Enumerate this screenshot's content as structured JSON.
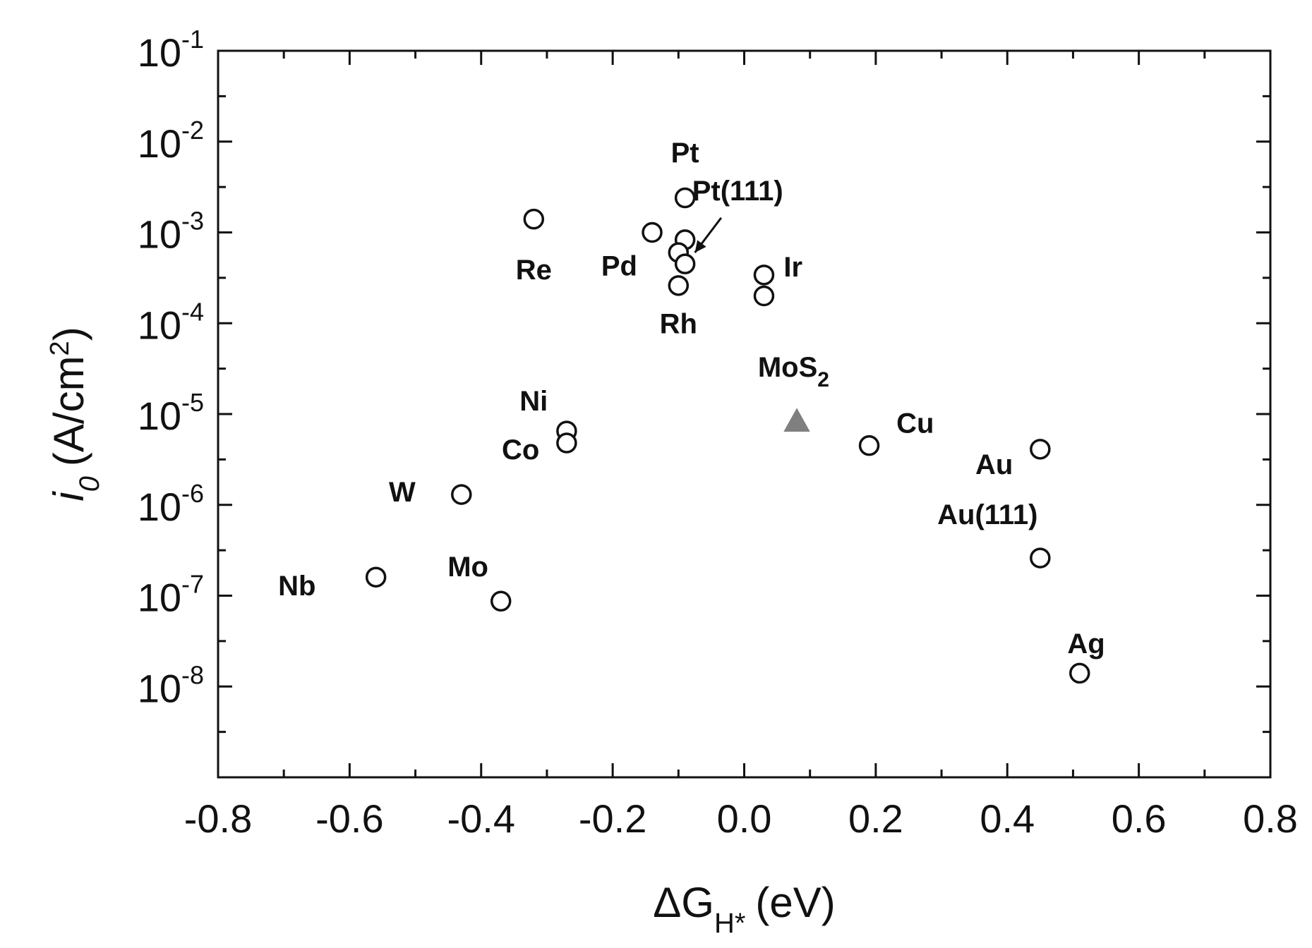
{
  "chart_data": {
    "type": "scatter",
    "title": "",
    "xlabel": {
      "main": "ΔG",
      "sub": "H*",
      "unit": "(eV)"
    },
    "ylabel": {
      "main": "i",
      "sub": "0",
      "unit_pre": "(A/cm",
      "unit_sup": "2",
      "unit_post": ")"
    },
    "xlim": [
      -0.8,
      0.8
    ],
    "ylim": [
      1e-09,
      0.1
    ],
    "yscale": "log",
    "grid": false,
    "x_ticks": [
      -0.8,
      -0.6,
      -0.4,
      -0.2,
      0.0,
      0.2,
      0.4,
      0.6,
      0.8
    ],
    "x_tick_labels": [
      "-0.8",
      "-0.6",
      "-0.4",
      "-0.2",
      "0.0",
      "0.2",
      "0.4",
      "0.6",
      "0.8"
    ],
    "y_ticks": [
      1e-08,
      1e-07,
      1e-06,
      1e-05,
      0.0001,
      0.001,
      0.01,
      0.1
    ],
    "y_tick_labels": [
      {
        "base": "10",
        "exp": "-8"
      },
      {
        "base": "10",
        "exp": "-7"
      },
      {
        "base": "10",
        "exp": "-6"
      },
      {
        "base": "10",
        "exp": "-5"
      },
      {
        "base": "10",
        "exp": "-4"
      },
      {
        "base": "10",
        "exp": "-3"
      },
      {
        "base": "10",
        "exp": "-2"
      },
      {
        "base": "10",
        "exp": "-1"
      }
    ],
    "colors": {
      "marker": "#111111",
      "mos2": "#7f7f7f"
    },
    "points": [
      {
        "x": -0.56,
        "y": 1.6e-07,
        "marker": "circle"
      },
      {
        "x": -0.37,
        "y": 8.7e-08,
        "marker": "circle"
      },
      {
        "x": -0.43,
        "y": 1.3e-06,
        "marker": "circle"
      },
      {
        "x": -0.27,
        "y": 6.5e-06,
        "marker": "circle"
      },
      {
        "x": -0.27,
        "y": 4.8e-06,
        "marker": "circle"
      },
      {
        "x": -0.32,
        "y": 0.0014,
        "marker": "circle"
      },
      {
        "x": -0.14,
        "y": 0.001,
        "marker": "circle"
      },
      {
        "x": -0.09,
        "y": 0.0024,
        "marker": "circle"
      },
      {
        "x": -0.09,
        "y": 0.00083,
        "marker": "circle"
      },
      {
        "x": -0.1,
        "y": 0.0006,
        "marker": "circle"
      },
      {
        "x": -0.09,
        "y": 0.00045,
        "marker": "circle"
      },
      {
        "x": -0.1,
        "y": 0.00026,
        "marker": "circle"
      },
      {
        "x": 0.03,
        "y": 0.00034,
        "marker": "circle"
      },
      {
        "x": 0.03,
        "y": 0.0002,
        "marker": "circle"
      },
      {
        "x": 0.08,
        "y": 8.3e-06,
        "marker": "triangle"
      },
      {
        "x": 0.19,
        "y": 4.5e-06,
        "marker": "circle"
      },
      {
        "x": 0.45,
        "y": 4.1e-06,
        "marker": "circle"
      },
      {
        "x": 0.45,
        "y": 2.6e-07,
        "marker": "circle"
      },
      {
        "x": 0.51,
        "y": 1.4e-08,
        "marker": "circle"
      }
    ],
    "annotations": [
      {
        "text": "Nb",
        "x": -0.68,
        "y": 1.3e-07,
        "anchor": "middle"
      },
      {
        "text": "Mo",
        "x": -0.42,
        "y": 2.1e-07,
        "anchor": "middle"
      },
      {
        "text": "W",
        "x": -0.52,
        "y": 1.4e-06,
        "anchor": "middle"
      },
      {
        "text": "Co",
        "x": -0.34,
        "y": 4.1e-06,
        "anchor": "middle"
      },
      {
        "text": "Ni",
        "x": -0.32,
        "y": 1.4e-05,
        "anchor": "middle"
      },
      {
        "text": "Re",
        "x": -0.32,
        "y": 0.00039,
        "anchor": "middle"
      },
      {
        "text": "Pd",
        "x": -0.19,
        "y": 0.00043,
        "anchor": "middle"
      },
      {
        "text": "Pt",
        "x": -0.09,
        "y": 0.0076,
        "anchor": "middle"
      },
      {
        "text": "Pt(111)",
        "x": -0.01,
        "y": 0.0029,
        "anchor": "middle"
      },
      {
        "text": "Rh",
        "x": -0.1,
        "y": 0.0001,
        "anchor": "middle"
      },
      {
        "text": "Ir",
        "x": 0.06,
        "y": 0.00042,
        "anchor": "start"
      },
      {
        "text": "MoS",
        "sub": "2",
        "x": 0.075,
        "y": 3.3e-05,
        "anchor": "middle"
      },
      {
        "text": "Cu",
        "x": 0.26,
        "y": 8e-06,
        "anchor": "middle"
      },
      {
        "text": "Au",
        "x": 0.38,
        "y": 2.8e-06,
        "anchor": "middle"
      },
      {
        "text": "Au(111)",
        "x": 0.37,
        "y": 7.9e-07,
        "anchor": "middle"
      },
      {
        "text": "Ag",
        "x": 0.52,
        "y": 3e-08,
        "anchor": "middle"
      }
    ],
    "arrows": [
      {
        "from": {
          "x": -0.035,
          "y": 0.00145
        },
        "to": {
          "x": -0.075,
          "y": 0.0006
        }
      }
    ]
  }
}
